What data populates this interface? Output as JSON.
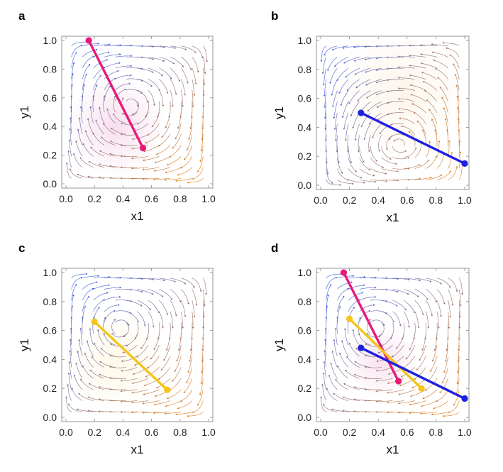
{
  "chart_data": [
    {
      "type": "streamplot",
      "panel": "a",
      "xlabel": "x1",
      "ylabel": "y1",
      "xlim": [
        0,
        1
      ],
      "ylim": [
        0,
        1
      ],
      "xticks": [
        "0.0",
        "0.2",
        "0.4",
        "0.6",
        "0.8",
        "1.0"
      ],
      "yticks": [
        "0.0",
        "0.2",
        "0.4",
        "0.6",
        "0.8",
        "1.0"
      ],
      "field": "A",
      "series": [
        {
          "name": "trajectory",
          "color": "#e8197a",
          "x": [
            0.16,
            0.54
          ],
          "y": [
            1.0,
            0.25
          ]
        }
      ]
    },
    {
      "type": "streamplot",
      "panel": "b",
      "xlabel": "x1",
      "ylabel": "y1",
      "xlim": [
        0,
        1
      ],
      "ylim": [
        0,
        1
      ],
      "xticks": [
        "0.0",
        "0.2",
        "0.4",
        "0.6",
        "0.8",
        "1.0"
      ],
      "yticks": [
        "0.0",
        "0.2",
        "0.4",
        "0.6",
        "0.8",
        "1.0"
      ],
      "field": "B",
      "series": [
        {
          "name": "trajectory",
          "color": "#1f1fe0",
          "x": [
            0.28,
            1.0
          ],
          "y": [
            0.5,
            0.15
          ]
        }
      ]
    },
    {
      "type": "streamplot",
      "panel": "c",
      "xlabel": "x1",
      "ylabel": "y1",
      "xlim": [
        0,
        1
      ],
      "ylim": [
        0,
        1
      ],
      "xticks": [
        "0.0",
        "0.2",
        "0.4",
        "0.6",
        "0.8",
        "1.0"
      ],
      "yticks": [
        "0.0",
        "0.2",
        "0.4",
        "0.6",
        "0.8",
        "1.0"
      ],
      "field": "C",
      "series": [
        {
          "name": "trajectory",
          "color": "#f5c518",
          "x": [
            0.2,
            0.71
          ],
          "y": [
            0.66,
            0.19
          ]
        }
      ]
    },
    {
      "type": "streamplot",
      "panel": "d",
      "xlabel": "x1",
      "ylabel": "y1",
      "xlim": [
        0,
        1
      ],
      "ylim": [
        0,
        1
      ],
      "xticks": [
        "0.0",
        "0.2",
        "0.4",
        "0.6",
        "0.8",
        "1.0"
      ],
      "yticks": [
        "0.0",
        "0.2",
        "0.4",
        "0.6",
        "0.8",
        "1.0"
      ],
      "field": "C",
      "series": [
        {
          "name": "trajectory-magenta",
          "color": "#e8197a",
          "x": [
            0.16,
            0.54
          ],
          "y": [
            1.0,
            0.25
          ]
        },
        {
          "name": "trajectory-yellow",
          "color": "#f5c518",
          "x": [
            0.2,
            0.7
          ],
          "y": [
            0.68,
            0.2
          ]
        },
        {
          "name": "trajectory-blue",
          "color": "#1f1fe0",
          "x": [
            0.28,
            1.0
          ],
          "y": [
            0.48,
            0.13
          ]
        }
      ]
    }
  ],
  "colors": {
    "stream_low": "#3b5bd8",
    "stream_high": "#e07a10",
    "tint_a": "#d64a9e",
    "tint_b": "#e89a3a",
    "tint_c": "#f0c63a",
    "tint_d": "#d64a9e"
  }
}
